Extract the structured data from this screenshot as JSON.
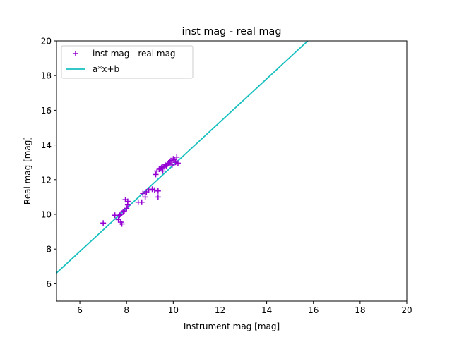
{
  "chart_data": {
    "type": "scatter",
    "title": "inst mag - real mag",
    "xlabel": "Instrument mag [mag]",
    "ylabel": "Real mag [mag]",
    "xlim": [
      5,
      20
    ],
    "ylim": [
      5,
      20
    ],
    "xticks": [
      "6",
      "8",
      "10",
      "12",
      "14",
      "16",
      "18",
      "20"
    ],
    "yticks": [
      "6",
      "8",
      "10",
      "12",
      "14",
      "16",
      "18",
      "20"
    ],
    "grid": false,
    "legend_position": "upper-left",
    "series": [
      {
        "name": "inst mag - real mag",
        "kind": "scatter",
        "marker": "plus",
        "color": "#9400d3",
        "points": [
          [
            7.0,
            9.5
          ],
          [
            7.5,
            9.95
          ],
          [
            7.65,
            9.7
          ],
          [
            7.75,
            9.55
          ],
          [
            7.8,
            9.45
          ],
          [
            7.7,
            9.95
          ],
          [
            7.75,
            10.0
          ],
          [
            7.85,
            10.15
          ],
          [
            7.9,
            10.2
          ],
          [
            7.95,
            10.85
          ],
          [
            8.05,
            10.75
          ],
          [
            8.05,
            10.55
          ],
          [
            8.0,
            10.35
          ],
          [
            8.5,
            10.7
          ],
          [
            8.65,
            10.7
          ],
          [
            8.7,
            11.2
          ],
          [
            8.8,
            11.0
          ],
          [
            8.85,
            11.3
          ],
          [
            8.95,
            11.4
          ],
          [
            9.1,
            11.45
          ],
          [
            9.2,
            11.4
          ],
          [
            9.35,
            11.35
          ],
          [
            9.35,
            11.0
          ],
          [
            9.25,
            12.3
          ],
          [
            9.3,
            12.5
          ],
          [
            9.4,
            12.6
          ],
          [
            9.45,
            12.65
          ],
          [
            9.5,
            12.7
          ],
          [
            9.55,
            12.5
          ],
          [
            9.6,
            12.75
          ],
          [
            9.65,
            12.85
          ],
          [
            9.7,
            12.8
          ],
          [
            9.75,
            12.9
          ],
          [
            9.8,
            12.95
          ],
          [
            9.85,
            13.05
          ],
          [
            9.9,
            13.1
          ],
          [
            9.95,
            12.85
          ],
          [
            10.0,
            13.2
          ],
          [
            10.05,
            13.15
          ],
          [
            10.1,
            13.0
          ],
          [
            10.15,
            13.3
          ],
          [
            10.2,
            12.95
          ]
        ]
      },
      {
        "name": "a*x+b",
        "kind": "line",
        "color": "#17bfbf",
        "x": [
          5,
          15.76
        ],
        "y": [
          6.62,
          20.0
        ]
      }
    ]
  }
}
